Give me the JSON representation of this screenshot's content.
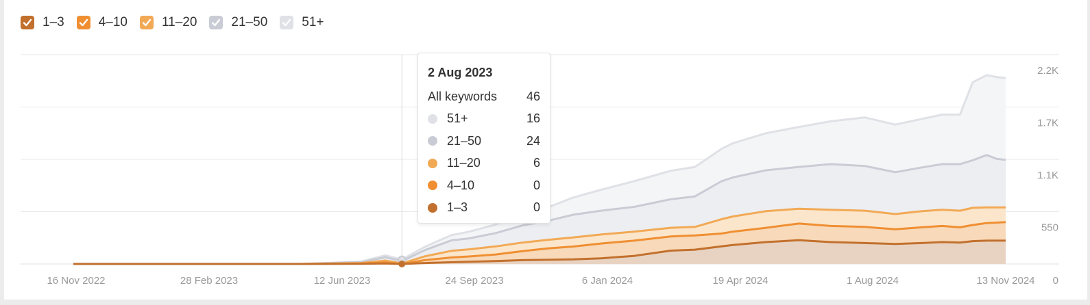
{
  "legend": [
    {
      "label": "1–3",
      "color": "#c2702d",
      "checked": true
    },
    {
      "label": "4–10",
      "color": "#ef8f32",
      "checked": true
    },
    {
      "label": "11–20",
      "color": "#f2a955",
      "checked": true
    },
    {
      "label": "21–50",
      "color": "#c9ccd4",
      "checked": true
    },
    {
      "label": "51+",
      "color": "#dfe1e6",
      "checked": true
    }
  ],
  "tooltip": {
    "date": "2 Aug 2023",
    "total_label": "All keywords",
    "total_value": "46",
    "rows": [
      {
        "label": "51+",
        "value": "16",
        "color": "#dfe1e6"
      },
      {
        "label": "21–50",
        "value": "24",
        "color": "#c9ccd4"
      },
      {
        "label": "11–20",
        "value": "6",
        "color": "#f2a955"
      },
      {
        "label": "4–10",
        "value": "0",
        "color": "#ef8f32"
      },
      {
        "label": "1–3",
        "value": "0",
        "color": "#c2702d"
      }
    ]
  },
  "chart_data": {
    "type": "area",
    "stacked": true,
    "x": [
      "2022-11-16",
      "2023-01-15",
      "2023-03-15",
      "2023-05-15",
      "2023-07-01",
      "2023-07-20",
      "2023-08-02",
      "2023-08-20",
      "2023-09-10",
      "2023-09-24",
      "2023-10-15",
      "2023-11-05",
      "2023-11-25",
      "2023-12-15",
      "2024-01-06",
      "2024-02-01",
      "2024-03-01",
      "2024-03-20",
      "2024-04-10",
      "2024-04-19",
      "2024-05-15",
      "2024-06-10",
      "2024-07-05",
      "2024-08-01",
      "2024-08-25",
      "2024-09-15",
      "2024-10-01",
      "2024-10-15",
      "2024-10-25",
      "2024-11-05",
      "2024-11-13",
      "2024-11-20"
    ],
    "xticks": [
      "16 Nov 2022",
      "28 Feb 2023",
      "12 Jun 2023",
      "24 Sep 2023",
      "6 Jan 2024",
      "19 Apr 2024",
      "1 Aug 2024",
      "13 Nov 2024"
    ],
    "yticks": [
      "0",
      "550",
      "1.1K",
      "1.7K",
      "2.2K"
    ],
    "ylim": [
      0,
      2200
    ],
    "series": [
      {
        "name": "1–3",
        "color": "#c2702d",
        "fill": "#e8d3c2",
        "values": [
          0,
          0,
          0,
          0,
          2,
          6,
          0,
          10,
          18,
          24,
          30,
          40,
          44,
          48,
          60,
          85,
          140,
          150,
          185,
          200,
          230,
          250,
          230,
          220,
          210,
          220,
          230,
          225,
          240,
          245,
          245,
          245
        ]
      },
      {
        "name": "4–10",
        "color": "#ef8f32",
        "fill": "#f8d9b9",
        "values": [
          0,
          0,
          0,
          0,
          3,
          10,
          0,
          30,
          50,
          55,
          70,
          95,
          120,
          135,
          155,
          160,
          150,
          150,
          135,
          140,
          150,
          175,
          170,
          170,
          155,
          165,
          170,
          160,
          170,
          185,
          190,
          195
        ]
      },
      {
        "name": "11–20",
        "color": "#f2a955",
        "fill": "#fbe6cc",
        "values": [
          0,
          0,
          0,
          0,
          5,
          20,
          6,
          40,
          70,
          75,
          85,
          90,
          90,
          95,
          95,
          95,
          90,
          90,
          150,
          160,
          175,
          155,
          170,
          170,
          160,
          170,
          170,
          175,
          180,
          165,
          160,
          155
        ]
      },
      {
        "name": "21–50",
        "color": "#c9ccd4",
        "fill": "#eceef2",
        "values": [
          1,
          1,
          1,
          1,
          10,
          35,
          24,
          65,
          110,
          115,
          140,
          180,
          200,
          240,
          250,
          260,
          300,
          320,
          400,
          410,
          430,
          440,
          480,
          470,
          440,
          460,
          480,
          490,
          500,
          550,
          510,
          500
        ]
      },
      {
        "name": "51+",
        "color": "#dfe1e6",
        "fill": "#f4f5f7",
        "values": [
          0,
          0,
          0,
          0,
          5,
          20,
          16,
          35,
          55,
          70,
          90,
          110,
          140,
          180,
          220,
          270,
          300,
          310,
          340,
          360,
          390,
          420,
          450,
          510,
          500,
          510,
          520,
          520,
          820,
          840,
          860,
          860
        ]
      }
    ]
  }
}
